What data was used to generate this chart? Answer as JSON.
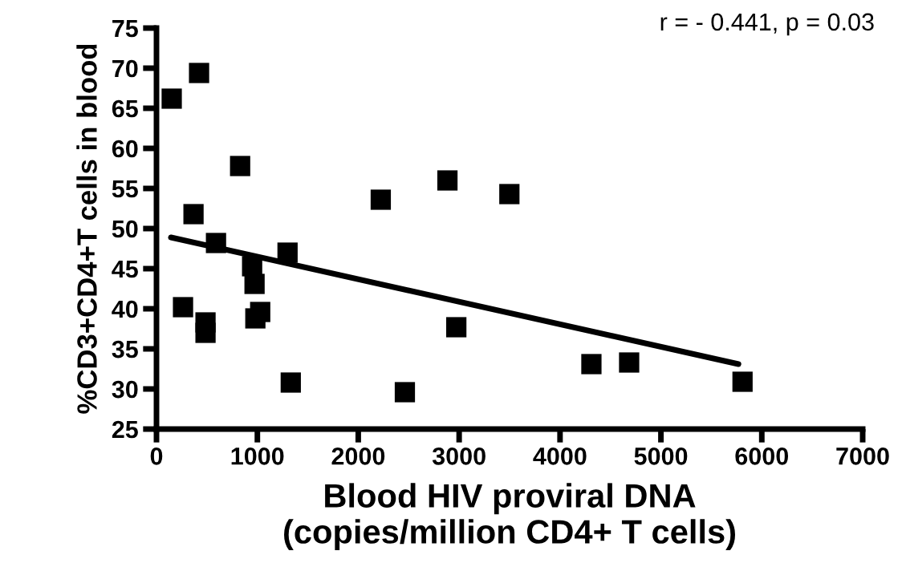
{
  "chart_data": {
    "type": "scatter",
    "xlabel": "Blood HIV proviral DNA\n(copies/million CD4+ T cells)",
    "ylabel": "%CD3+CD4+T cells in blood",
    "annotations": [
      "r = - 0.441, p = 0.03"
    ],
    "xlim": [
      0,
      7000
    ],
    "xticks": [
      0,
      1000,
      2000,
      3000,
      4000,
      5000,
      6000,
      7000
    ],
    "ylim": [
      25,
      75
    ],
    "yticks": [
      25,
      30,
      35,
      40,
      45,
      50,
      55,
      60,
      65,
      70,
      75
    ],
    "grid": false,
    "legend": false,
    "series": [
      {
        "color": "#000000",
        "marker": "square",
        "x": [
          151,
          422,
          829,
          2223,
          2884,
          3498,
          367,
          590,
          948,
          1299,
          972,
          263,
          486,
          486,
          980,
          1028,
          1331,
          2462,
          2972,
          4311,
          4685,
          5809
        ],
        "values": [
          66.2,
          69.4,
          57.8,
          53.6,
          56.0,
          54.3,
          51.8,
          48.2,
          45.3,
          47.0,
          43.1,
          40.2,
          38.3,
          37.0,
          38.8,
          39.6,
          30.8,
          29.6,
          37.7,
          33.1,
          33.3,
          30.9
        ]
      },
      {
        "type": "line",
        "color": "#000000",
        "marker": "none",
        "line_style": "solid",
        "x": [
          143,
          5769
        ],
        "values": [
          48.9,
          33.1
        ]
      }
    ]
  }
}
